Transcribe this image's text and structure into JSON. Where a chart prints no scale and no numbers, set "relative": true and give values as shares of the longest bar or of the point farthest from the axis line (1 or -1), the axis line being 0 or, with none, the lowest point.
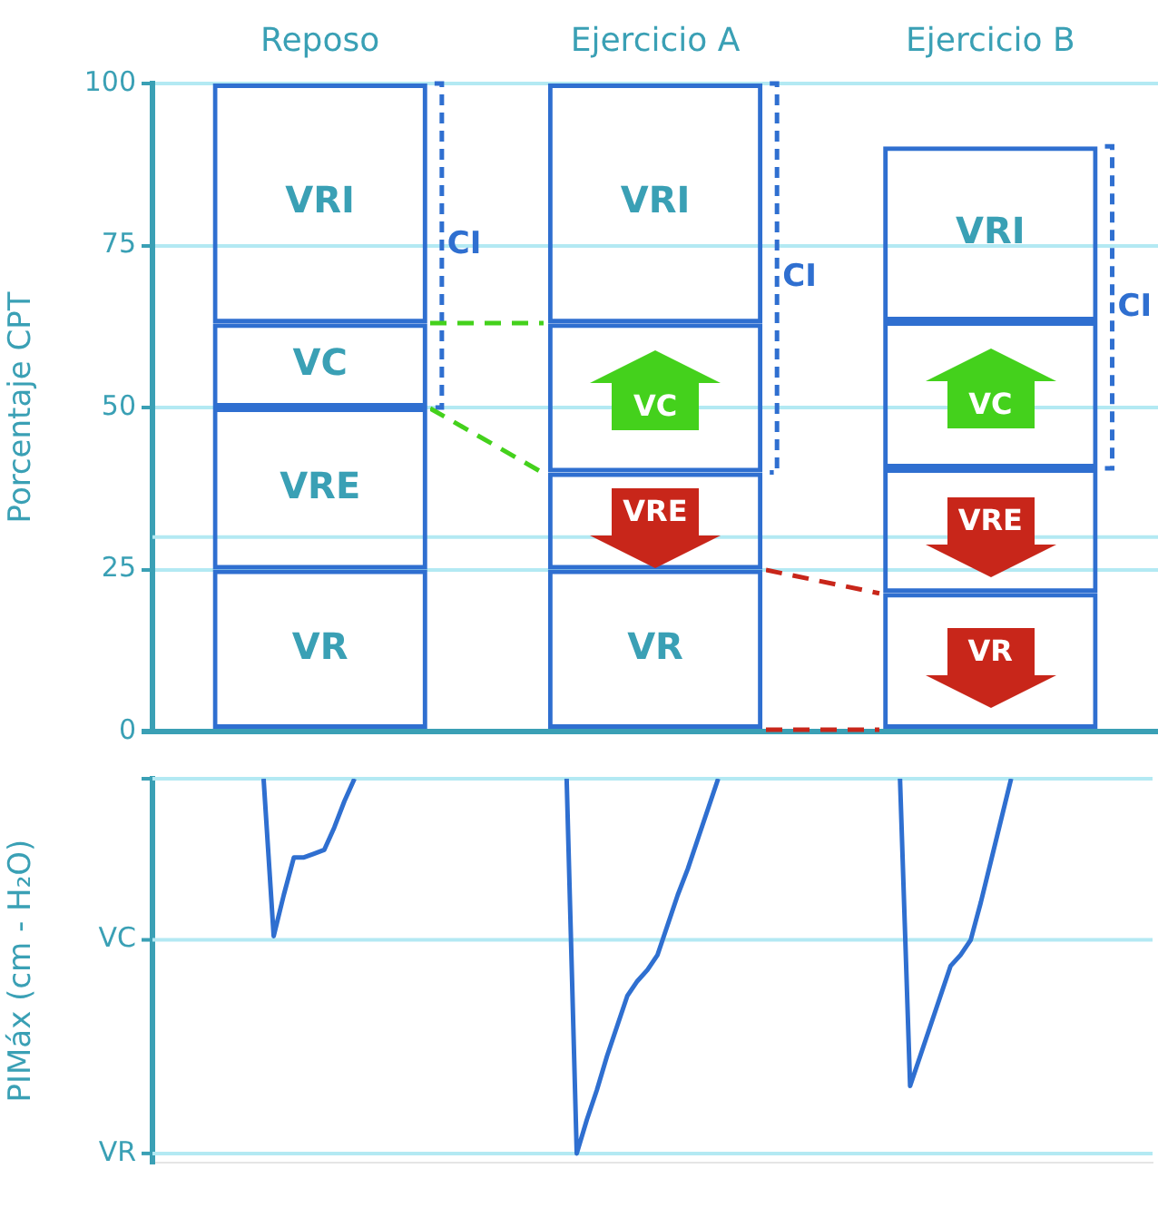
{
  "chart_data": [
    {
      "type": "bar",
      "stacked": true,
      "ylabel": "Porcentaje CPT",
      "categories": [
        "Reposo",
        "Ejercicio A",
        "Ejercicio B"
      ],
      "series": [
        {
          "name": "VR",
          "color": "#2f6fd0",
          "values": [
            25,
            25,
            21.4
          ]
        },
        {
          "name": "VRE",
          "color": "#2f6fd0",
          "values": [
            25,
            15,
            19.2
          ]
        },
        {
          "name": "VC",
          "color": "#2f6fd0",
          "values": [
            13,
            23,
            22.7
          ]
        },
        {
          "name": "VRI",
          "color": "#2f6fd0",
          "values": [
            37,
            37,
            27
          ]
        }
      ],
      "ylim": [
        0,
        100
      ],
      "yticks": [
        0,
        25,
        50,
        75,
        100
      ],
      "grid": "y",
      "legend": false,
      "ref_lines": [
        {
          "axis": "y",
          "value": 30,
          "color": "#b3e9f3"
        }
      ],
      "annotations": [
        "CI",
        "CI",
        "CI"
      ]
    },
    {
      "type": "line",
      "relative": true,
      "ylabel": "PIMáx (cm - H₂O)",
      "legend": false,
      "marker": "none",
      "categories": [
        null,
        null,
        null,
        null,
        null,
        null,
        null,
        null,
        null,
        null,
        null,
        null,
        null,
        null,
        null,
        null,
        null,
        null,
        null,
        null,
        null,
        null,
        null,
        null,
        null,
        null,
        null,
        null,
        null,
        null,
        null,
        null,
        null,
        null,
        null,
        null,
        null,
        null,
        null,
        null,
        null,
        null,
        null,
        null,
        null,
        null,
        null,
        null,
        null,
        null,
        null,
        null,
        null,
        null,
        null,
        null,
        null,
        null,
        null,
        null,
        null,
        null,
        null,
        null,
        null,
        null,
        null,
        null,
        null,
        null,
        null,
        null,
        null,
        null,
        null,
        null,
        null,
        null,
        null,
        null,
        null,
        null,
        null,
        null,
        null,
        null,
        null,
        null,
        null,
        null,
        null,
        null,
        null,
        null,
        null,
        null,
        null,
        null,
        null,
        null
      ],
      "ref_lines": [
        {
          "axis": "y",
          "value": 0,
          "label": "VR",
          "color": "#b3e9f3"
        },
        {
          "axis": "y",
          "value": 0.57,
          "label": "VC",
          "color": "#b3e9f3"
        },
        {
          "axis": "y",
          "value": 1,
          "color": "#b3e9f3"
        }
      ],
      "series": [
        {
          "color": "#2f6fd0",
          "values": [
            null,
            null,
            null,
            null,
            null,
            null,
            null,
            null,
            null,
            null,
            null,
            1,
            0.58,
            0.69,
            0.79,
            0.79,
            0.8,
            0.81,
            0.87,
            0.94,
            1,
            null,
            null,
            null,
            null,
            null,
            null,
            null,
            null,
            null,
            null,
            null,
            null,
            null,
            null,
            null,
            null,
            null,
            null,
            null,
            null,
            null,
            null,
            null,
            null,
            null,
            null,
            null,
            null,
            null,
            null,
            null,
            null,
            null,
            null,
            null,
            null,
            null,
            null,
            null,
            null,
            null,
            null,
            null,
            null,
            null,
            null,
            null,
            null,
            null,
            null,
            null,
            null,
            null,
            null,
            null,
            null,
            null,
            null,
            null,
            null,
            null,
            null,
            null,
            null,
            null,
            null,
            null,
            null,
            null,
            null,
            null,
            null,
            null,
            null,
            null,
            null,
            null,
            null,
            null
          ]
        },
        {
          "color": "#2f6fd0",
          "values": [
            null,
            null,
            null,
            null,
            null,
            null,
            null,
            null,
            null,
            null,
            null,
            null,
            null,
            null,
            null,
            null,
            null,
            null,
            null,
            null,
            null,
            null,
            null,
            null,
            null,
            null,
            null,
            null,
            null,
            null,
            null,
            null,
            null,
            null,
            null,
            null,
            null,
            null,
            null,
            null,
            null,
            1,
            0,
            0.09,
            0.17,
            0.26,
            0.34,
            0.42,
            0.46,
            0.49,
            0.53,
            0.61,
            0.69,
            0.76,
            0.84,
            0.92,
            1,
            null,
            null,
            null,
            null,
            null,
            null,
            null,
            null,
            null,
            null,
            null,
            null,
            null,
            null,
            null,
            null,
            null,
            null,
            null,
            null,
            null,
            null,
            null,
            null,
            null,
            null,
            null,
            null,
            null,
            null,
            null,
            null,
            null,
            null,
            null,
            null,
            null,
            null,
            null,
            null,
            null,
            null,
            null
          ]
        },
        {
          "color": "#2f6fd0",
          "values": [
            null,
            null,
            null,
            null,
            null,
            null,
            null,
            null,
            null,
            null,
            null,
            null,
            null,
            null,
            null,
            null,
            null,
            null,
            null,
            null,
            null,
            null,
            null,
            null,
            null,
            null,
            null,
            null,
            null,
            null,
            null,
            null,
            null,
            null,
            null,
            null,
            null,
            null,
            null,
            null,
            null,
            null,
            null,
            null,
            null,
            null,
            null,
            null,
            null,
            null,
            null,
            null,
            null,
            null,
            null,
            null,
            null,
            null,
            null,
            null,
            null,
            null,
            null,
            null,
            null,
            null,
            null,
            null,
            null,
            null,
            null,
            null,
            null,
            null,
            1,
            0.18,
            0.26,
            0.34,
            0.42,
            0.5,
            0.53,
            0.57,
            0.67,
            0.78,
            0.89,
            1,
            null,
            null,
            null,
            null,
            null,
            null,
            null,
            null,
            null,
            null,
            null,
            null,
            null,
            null
          ]
        }
      ]
    }
  ]
}
